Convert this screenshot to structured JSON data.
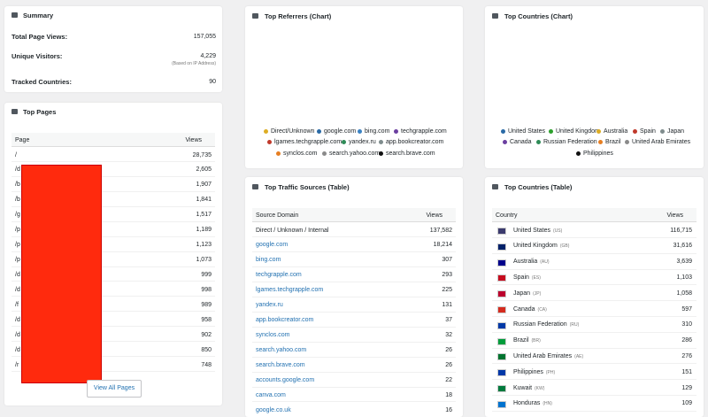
{
  "summary": {
    "title": "Summary",
    "rows": [
      {
        "label": "Total Page Views:",
        "value": "157,055"
      },
      {
        "label": "Unique Visitors:",
        "value": "4,229",
        "note": "(Based on IP Address)"
      },
      {
        "label": "Tracked Countries:",
        "value": "90"
      }
    ]
  },
  "top_pages": {
    "title": "Top Pages",
    "columns": [
      "Page",
      "Views"
    ],
    "rows": [
      [
        "/",
        "28,735"
      ],
      [
        "/d",
        "2,605"
      ],
      [
        "/b",
        "1,907"
      ],
      [
        "/b",
        "1,841"
      ],
      [
        "/g",
        "1,517"
      ],
      [
        "/p",
        "1,189"
      ],
      [
        "/p",
        "1,123"
      ],
      [
        "/p",
        "1,073"
      ],
      [
        "/d",
        "999"
      ],
      [
        "/d",
        "998"
      ],
      [
        "/f",
        "989"
      ],
      [
        "/d",
        "958"
      ],
      [
        "/d",
        "902"
      ],
      [
        "/d",
        "850"
      ],
      [
        "/r",
        "748"
      ]
    ],
    "button": "View All Pages"
  },
  "referrers_chart": {
    "title": "Top Referrers (Chart)",
    "labels": [
      "Direct/Unknown",
      "google.com",
      "bing.com",
      "techgrapple.com",
      "lgames.techgrapple.com",
      "yandex.ru",
      "app.bookcreator.com",
      "synclos.com",
      "search.yahoo.com",
      "search.brave.com"
    ],
    "colors": [
      "#ddad24",
      "#2a6aa6",
      "#3b83c4",
      "#6b3fa0",
      "#c0392b",
      "#2e8b57",
      "#7f8c8d",
      "#e67e22",
      "#8a8a8a",
      "#111111"
    ]
  },
  "countries_chart": {
    "title": "Top Countries (Chart)",
    "labels": [
      "United States",
      "United Kingdom",
      "Australia",
      "Spain",
      "Japan",
      "Canada",
      "Russian Federation",
      "Brazil",
      "United Arab Emirates",
      "Philippines"
    ],
    "colors": [
      "#2a6aa6",
      "#2ca02c",
      "#ddad24",
      "#c0392b",
      "#7f8c8d",
      "#6b3fa0",
      "#2e8b57",
      "#e67e22",
      "#8a8a8a",
      "#111111"
    ]
  },
  "traffic_sources": {
    "title": "Top Traffic Sources (Table)",
    "columns": [
      "Source Domain",
      "Views"
    ],
    "rows": [
      [
        "Direct / Unknown / Internal",
        "137,582"
      ],
      [
        "google.com",
        "18,214"
      ],
      [
        "bing.com",
        "307"
      ],
      [
        "techgrapple.com",
        "293"
      ],
      [
        "lgames.techgrapple.com",
        "225"
      ],
      [
        "yandex.ru",
        "131"
      ],
      [
        "app.bookcreator.com",
        "37"
      ],
      [
        "synclos.com",
        "32"
      ],
      [
        "search.yahoo.com",
        "26"
      ],
      [
        "search.brave.com",
        "26"
      ],
      [
        "accounts.google.com",
        "22"
      ],
      [
        "canva.com",
        "18"
      ],
      [
        "google.co.uk",
        "16"
      ]
    ]
  },
  "countries_table": {
    "title": "Top Countries (Table)",
    "columns": [
      "Country",
      "Views"
    ],
    "rows": [
      [
        "United States",
        "(US)",
        "116,715"
      ],
      [
        "United Kingdom",
        "(GB)",
        "31,616"
      ],
      [
        "Australia",
        "(AU)",
        "3,639"
      ],
      [
        "Spain",
        "(ES)",
        "1,103"
      ],
      [
        "Japan",
        "(JP)",
        "1,058"
      ],
      [
        "Canada",
        "(CA)",
        "597"
      ],
      [
        "Russian Federation",
        "(RU)",
        "310"
      ],
      [
        "Brazil",
        "(BR)",
        "286"
      ],
      [
        "United Arab Emirates",
        "(AE)",
        "276"
      ],
      [
        "Philippines",
        "(PH)",
        "151"
      ],
      [
        "Kuwait",
        "(KW)",
        "129"
      ],
      [
        "Honduras",
        "(HN)",
        "109"
      ]
    ]
  }
}
